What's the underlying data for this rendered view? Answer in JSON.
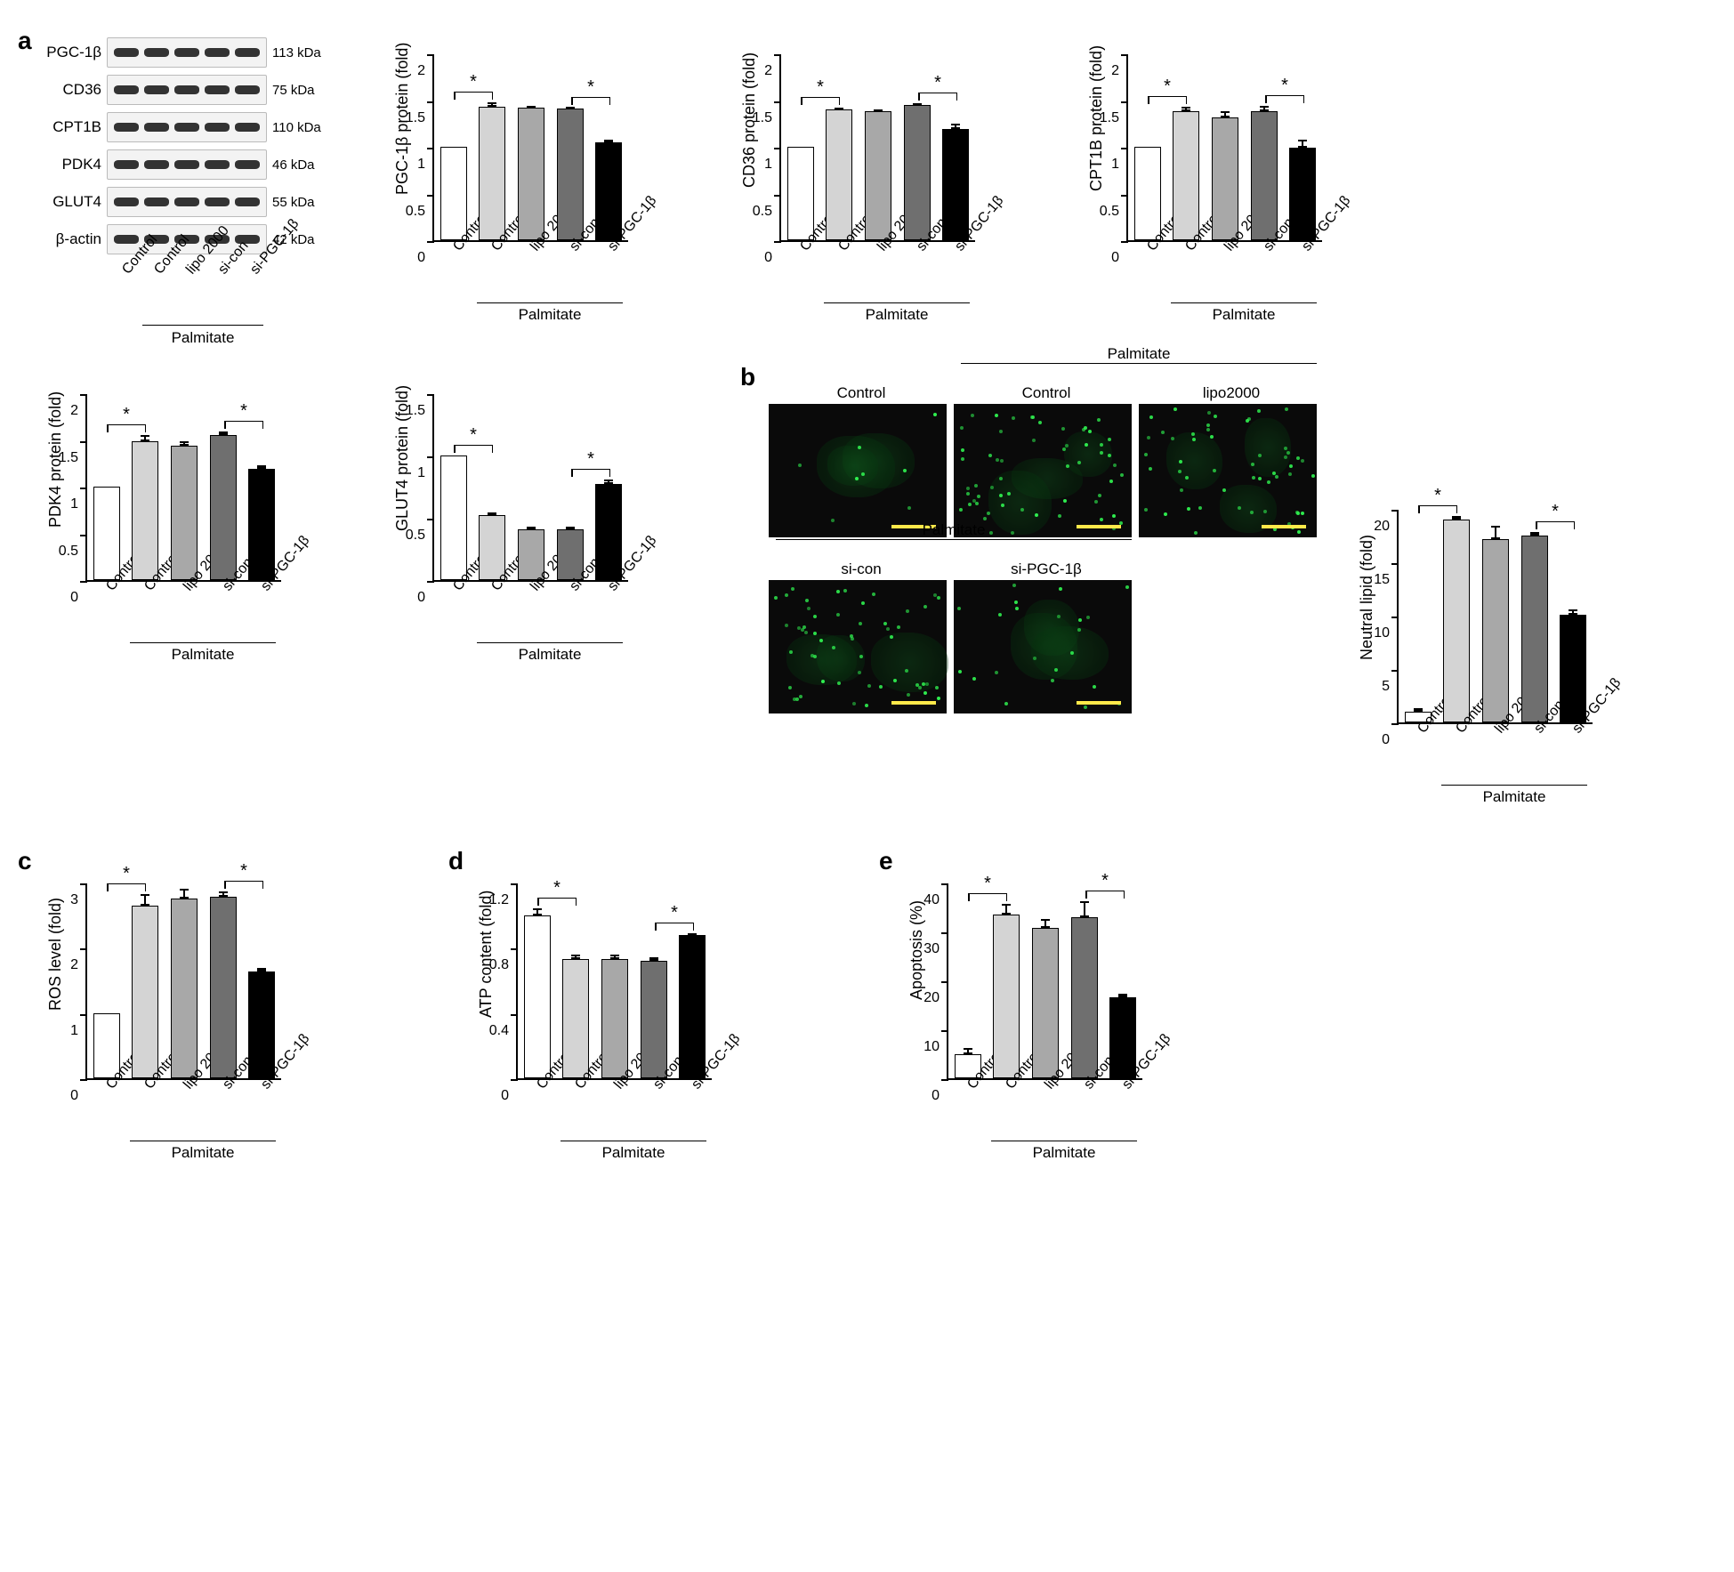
{
  "conditions": [
    "Control",
    "Control",
    "lipo 2000",
    "si-con",
    "si-PGC-1β"
  ],
  "palmitate_group_label": "Palmitate",
  "colors": {
    "bars": [
      "#ffffff",
      "#d4d4d4",
      "#a8a8a8",
      "#6f6f6f",
      "#000000"
    ],
    "axis": "#000000",
    "bg": "#ffffff"
  },
  "western_blot": {
    "rows": [
      {
        "label": "PGC-1β",
        "mw": "113 kDa"
      },
      {
        "label": "CD36",
        "mw": "75 kDa"
      },
      {
        "label": "CPT1B",
        "mw": "110 kDa"
      },
      {
        "label": "PDK4",
        "mw": "46 kDa"
      },
      {
        "label": "GLUT4",
        "mw": "55 kDa"
      },
      {
        "label": "β-actin",
        "mw": "42 kDa"
      }
    ]
  },
  "charts": {
    "pgc1b": {
      "ylabel": "PGC-1β protein (fold)",
      "ylim": [
        0,
        2.0
      ],
      "yticks": [
        0,
        0.5,
        1.0,
        1.5,
        2.0
      ],
      "values": [
        1.0,
        1.43,
        1.42,
        1.41,
        1.05
      ],
      "err": [
        0,
        0.05,
        0.02,
        0.01,
        0.03
      ],
      "sig": [
        [
          0,
          1
        ],
        [
          3,
          4
        ]
      ]
    },
    "cd36": {
      "ylabel": "CD36 protein (fold)",
      "ylim": [
        0,
        2.0
      ],
      "yticks": [
        0,
        0.5,
        1.0,
        1.5,
        2.0
      ],
      "values": [
        1.0,
        1.4,
        1.38,
        1.45,
        1.19
      ],
      "err": [
        0,
        0.02,
        0.02,
        0.02,
        0.06
      ],
      "sig": [
        [
          0,
          1
        ],
        [
          3,
          4
        ]
      ]
    },
    "cpt1b": {
      "ylabel": "CPT1B protein (fold)",
      "ylim": [
        0,
        2.0
      ],
      "yticks": [
        0,
        0.5,
        1.0,
        1.5,
        2.0
      ],
      "values": [
        1.0,
        1.38,
        1.31,
        1.38,
        0.99
      ],
      "err": [
        0,
        0.05,
        0.07,
        0.06,
        0.09
      ],
      "sig": [
        [
          0,
          1
        ],
        [
          3,
          4
        ]
      ]
    },
    "pdk4": {
      "ylabel": "PDK4 protein (fold)",
      "ylim": [
        0,
        2.0
      ],
      "yticks": [
        0,
        0.5,
        1.0,
        1.5,
        2.0
      ],
      "values": [
        1.0,
        1.49,
        1.44,
        1.55,
        1.19
      ],
      "err": [
        0,
        0.06,
        0.05,
        0.04,
        0.04
      ],
      "sig": [
        [
          0,
          1
        ],
        [
          3,
          4
        ]
      ]
    },
    "glut4": {
      "ylabel": "GLUT4 protein (fold)",
      "ylim": [
        0,
        1.5
      ],
      "yticks": [
        0,
        0.5,
        1.0,
        1.5
      ],
      "values": [
        1.0,
        0.52,
        0.41,
        0.41,
        0.77
      ],
      "err": [
        0,
        0.02,
        0.02,
        0.02,
        0.04
      ],
      "sig": [
        [
          0,
          1
        ],
        [
          3,
          4
        ]
      ]
    },
    "neutral_lipid": {
      "ylabel": "Neutral lipid (fold)",
      "ylim": [
        0,
        20
      ],
      "yticks": [
        0,
        5,
        10,
        15,
        20
      ],
      "values": [
        1.0,
        19.0,
        17.2,
        17.5,
        10.1
      ],
      "err": [
        0.3,
        0.3,
        1.2,
        0.3,
        0.5
      ],
      "sig": [
        [
          0,
          1
        ],
        [
          3,
          4
        ]
      ]
    },
    "ros": {
      "ylabel": "ROS level (fold)",
      "ylim": [
        0,
        3
      ],
      "yticks": [
        0,
        1,
        2,
        3
      ],
      "values": [
        1.0,
        2.65,
        2.76,
        2.78,
        1.64
      ],
      "err": [
        0,
        0.17,
        0.15,
        0.09,
        0.05
      ],
      "sig": [
        [
          0,
          1
        ],
        [
          3,
          4
        ]
      ]
    },
    "atp": {
      "ylabel": "ATP content (fold)",
      "ylim": [
        0,
        1.2
      ],
      "yticks": [
        0,
        0.4,
        0.8,
        1.2
      ],
      "values": [
        1.0,
        0.73,
        0.73,
        0.72,
        0.88
      ],
      "err": [
        0.04,
        0.03,
        0.03,
        0.02,
        0.01
      ],
      "sig": [
        [
          0,
          1
        ],
        [
          3,
          4
        ]
      ]
    },
    "apoptosis": {
      "ylabel": "Apoptosis (%)",
      "ylim": [
        0,
        40
      ],
      "yticks": [
        0,
        10,
        20,
        30,
        40
      ],
      "values": [
        5.0,
        33.5,
        30.8,
        33.0,
        16.6
      ],
      "err": [
        1.2,
        2.2,
        1.8,
        3.2,
        0.6
      ],
      "sig": [
        [
          0,
          1
        ],
        [
          3,
          4
        ]
      ]
    }
  },
  "panel_b": {
    "micrograph_titles_top": [
      "Control",
      "Control",
      "lipo2000"
    ],
    "micrograph_titles_bottom": [
      "si-con",
      "si-PGC-1β"
    ]
  },
  "panel_labels": {
    "a": "a",
    "b": "b",
    "c": "c",
    "d": "d",
    "e": "e"
  }
}
